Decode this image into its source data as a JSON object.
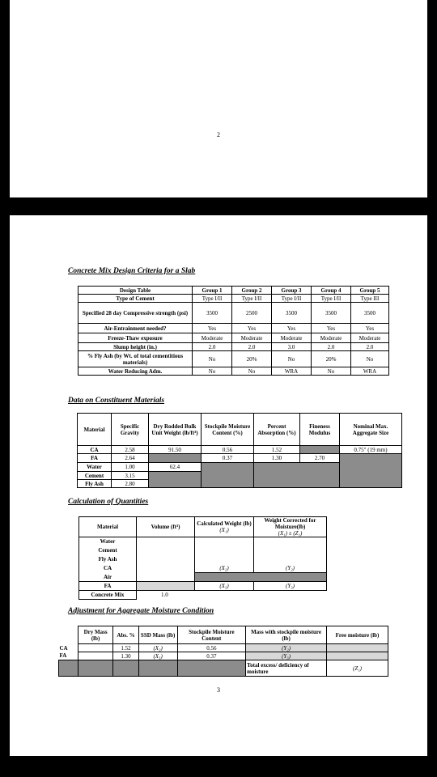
{
  "page1": {
    "page_number": "2"
  },
  "page2": {
    "page_number": "3"
  },
  "design": {
    "title": "Concrete Mix Design Criteria for a Slab",
    "header_label": "Design Table",
    "groups": [
      "Group 1",
      "Group 2",
      "Group 3",
      "Group 4",
      "Group 5"
    ],
    "rows": [
      {
        "label": "Type of Cement",
        "values": [
          "Type I/II",
          "Type I/II",
          "Type I/II",
          "Type I/II",
          "Type III"
        ]
      },
      {
        "label": "Specified 28 day Compressive strength (psi)",
        "values": [
          "3500",
          "2500",
          "3500",
          "3500",
          "3500"
        ]
      },
      {
        "label": "Air-Entrainment needed?",
        "values": [
          "Yes",
          "Yes",
          "Yes",
          "Yes",
          "Yes"
        ]
      },
      {
        "label": "Freeze-Thaw exposure",
        "values": [
          "Moderate",
          "Moderate",
          "Moderate",
          "Moderate",
          "Moderate"
        ]
      },
      {
        "label": "Slump height (in.)",
        "values": [
          "2.0",
          "2.0",
          "3.0",
          "2.0",
          "2.0"
        ]
      },
      {
        "label": "% Fly Ash (by Wt. of total cementitious materials)",
        "values": [
          "No",
          "20%",
          "No",
          "20%",
          "No"
        ]
      },
      {
        "label": "Water Reducing Adm.",
        "values": [
          "No",
          "No",
          "WRA",
          "No",
          "WRA"
        ]
      }
    ]
  },
  "constituent": {
    "title": "Data on Constituent Materials",
    "headers": [
      "Material",
      "Specific Gravity",
      "Dry Rodded Bulk Unit Weight (lb/ft³)",
      "Stockpile Moisture Content (%)",
      "Percent Absorption (%)",
      "Fineness Modulus",
      "Nominal Max. Aggregate Size"
    ],
    "rows": [
      {
        "material": "CA",
        "sg": "2.58",
        "bulk": "91.50",
        "moist": "0.56",
        "abs": "1.52",
        "fm": "",
        "size": "0.75\" (19 mm)"
      },
      {
        "material": "FA",
        "sg": "2.64",
        "bulk": "",
        "moist": "0.37",
        "abs": "1.30",
        "fm": "2.70",
        "size": ""
      },
      {
        "material": "Water",
        "sg": "1.00",
        "bulk": "62.4"
      },
      {
        "material": "Cement",
        "sg": "3.15"
      },
      {
        "material": "Fly Ash",
        "sg": "2.80"
      }
    ]
  },
  "quantities": {
    "title": "Calculation of Quantities",
    "headers": {
      "material": "Material",
      "volume": "Volume (ft³)",
      "calc": "Calculated Weight (lb)",
      "calc_sub": "(X₁)",
      "corr": "Weight Corrected for Moisture(lb)",
      "corr_sub": "(X₁) ± (Z₁)"
    },
    "materials": [
      "Water",
      "Cement",
      "Fly Ash",
      "CA",
      "Air",
      "FA",
      "Concrete Mix"
    ],
    "ca_calc": "(X₂)",
    "ca_corr": "(Y₂)",
    "fa_calc": "(X₃)",
    "fa_corr": "(Y₃)",
    "mix_volume": "1.0"
  },
  "adjustment": {
    "title": "Adjustment for Aggregate Moisture Condition",
    "headers": [
      "Dry Mass (lb)",
      "Abs. %",
      "SSD Mass (lb)",
      "Stockpile Moisture Content",
      "Mass with stockpile moisture (lb)",
      "Free moisture (lb)"
    ],
    "rows": [
      {
        "label": "CA",
        "abs": "1.52",
        "ssd": "(X₂)",
        "moist": "0.56",
        "mass": "(Y₂)"
      },
      {
        "label": "FA",
        "abs": "1.30",
        "ssd": "(X₃)",
        "moist": "0.37",
        "mass": "(Y₃)"
      }
    ],
    "total_label": "Total excess/ deficiency of moisture",
    "total_value": "(Z₁)"
  }
}
